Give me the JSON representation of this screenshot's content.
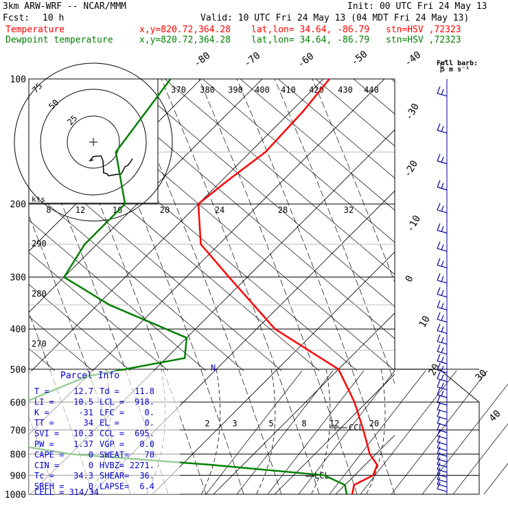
{
  "header": {
    "model": "3km ARW-WRF -- NCAR/MMM",
    "init": "Init: 00 UTC Fri 24 May 13",
    "fcst_label": "Fcst:",
    "fcst_value": "10 h",
    "valid": "Valid: 10 UTC Fri 24 May 13 (04 MDT Fri 24 May 13)",
    "temp_line": {
      "name": "Temperature",
      "xy": "x,y=820.72,364.28",
      "latlon": "lat,lon= 34.64, -86.79",
      "stn": "stn=HSV ,72323",
      "color": "#ff0000"
    },
    "dew_line": {
      "name": "Dewpoint temperature",
      "xy": "x,y=820.72,364.28",
      "latlon": "lat,lon= 34.64, -86.79",
      "stn": "stn=HSV ,72323",
      "color": "#008000"
    }
  },
  "barb_legend": {
    "line1": "Full barb:",
    "line2": "5 m s⁻¹"
  },
  "hodograph": {
    "rings": [
      "25",
      "50",
      "75"
    ],
    "units": "kts",
    "trace": [
      [
        136,
        233
      ],
      [
        131,
        234
      ],
      [
        136,
        228
      ],
      [
        147,
        227
      ],
      [
        150,
        234
      ],
      [
        151,
        252
      ],
      [
        156,
        253
      ],
      [
        158,
        256
      ],
      [
        177,
        253
      ],
      [
        182,
        243
      ],
      [
        186,
        241
      ],
      [
        190,
        236
      ],
      [
        193,
        231
      ]
    ]
  },
  "parcel_info": {
    "title": "Parcel Info",
    "rows": [
      [
        "T  =",
        "12.7",
        "Td =",
        "11.8"
      ],
      [
        "LI =",
        "10.5",
        "LCL =",
        "918."
      ],
      [
        "K  =",
        "-31",
        "LFC =",
        "0."
      ],
      [
        "TT =",
        "34",
        "EL  =",
        "0."
      ],
      [
        "SVI =",
        "10.3",
        "CCL =",
        "695."
      ],
      [
        "PW =",
        "1.37",
        "VGP =",
        "0.0"
      ],
      [
        "CAPE =",
        "0",
        "SWEAT=",
        "78"
      ],
      [
        "CIN =",
        "0",
        "HVBZ=",
        "2271."
      ],
      [
        "Tc =",
        "34.3",
        "SHEAR=",
        "36."
      ],
      [
        "SREH =",
        "0",
        "LAPSE=",
        "6.4"
      ]
    ],
    "cell": "CELL = 314/34"
  },
  "chart_data": {
    "type": "line",
    "title": "",
    "xlabel": "",
    "ylabel": "",
    "pressure_ticks": [
      "100",
      "200",
      "300",
      "400",
      "500",
      "600",
      "700",
      "800",
      "900",
      "1000"
    ],
    "isotherm_ticks": [
      "-80",
      "-70",
      "-60",
      "-50",
      "-40",
      "-30",
      "-20",
      "-10",
      "0",
      "10",
      "20",
      "30",
      "40"
    ],
    "theta_ticks": [
      "370",
      "380",
      "390",
      "400",
      "410",
      "420",
      "430",
      "440"
    ],
    "mixing_ratio_ticks": [
      "8",
      "12",
      "16",
      "20",
      "24",
      "28",
      "32"
    ],
    "mixing_ratio_lower": [
      "2",
      "3",
      "5",
      "8",
      "12",
      "20"
    ],
    "theta_side_ticks": [
      "290",
      "280",
      "270"
    ],
    "annotations": [
      "CCL",
      "LCL"
    ],
    "series": [
      {
        "name": "Temperature",
        "color": "#ff0000",
        "points": [
          [
            100,
            -59
          ],
          [
            120,
            -58
          ],
          [
            150,
            -57.5
          ],
          [
            175,
            -59
          ],
          [
            200,
            -60
          ],
          [
            250,
            -53
          ],
          [
            300,
            -43
          ],
          [
            400,
            -27
          ],
          [
            500,
            -10
          ],
          [
            600,
            -2
          ],
          [
            700,
            4
          ],
          [
            800,
            9
          ],
          [
            850,
            12
          ],
          [
            900,
            13
          ],
          [
            950,
            11.5
          ],
          [
            1000,
            12.7
          ]
        ]
      },
      {
        "name": "Dewpoint temperature",
        "color": "#008000",
        "points": [
          [
            100,
            -85
          ],
          [
            150,
            -82
          ],
          [
            200,
            -72
          ],
          [
            250,
            -72
          ],
          [
            300,
            -70
          ],
          [
            350,
            -58
          ],
          [
            420,
            -40
          ],
          [
            470,
            -37
          ],
          [
            520,
            -50
          ],
          [
            600,
            -56
          ],
          [
            700,
            -68
          ],
          [
            800,
            -40
          ],
          [
            850,
            -15
          ],
          [
            900,
            5
          ],
          [
            950,
            10
          ],
          [
            1000,
            11.8
          ]
        ]
      }
    ]
  }
}
